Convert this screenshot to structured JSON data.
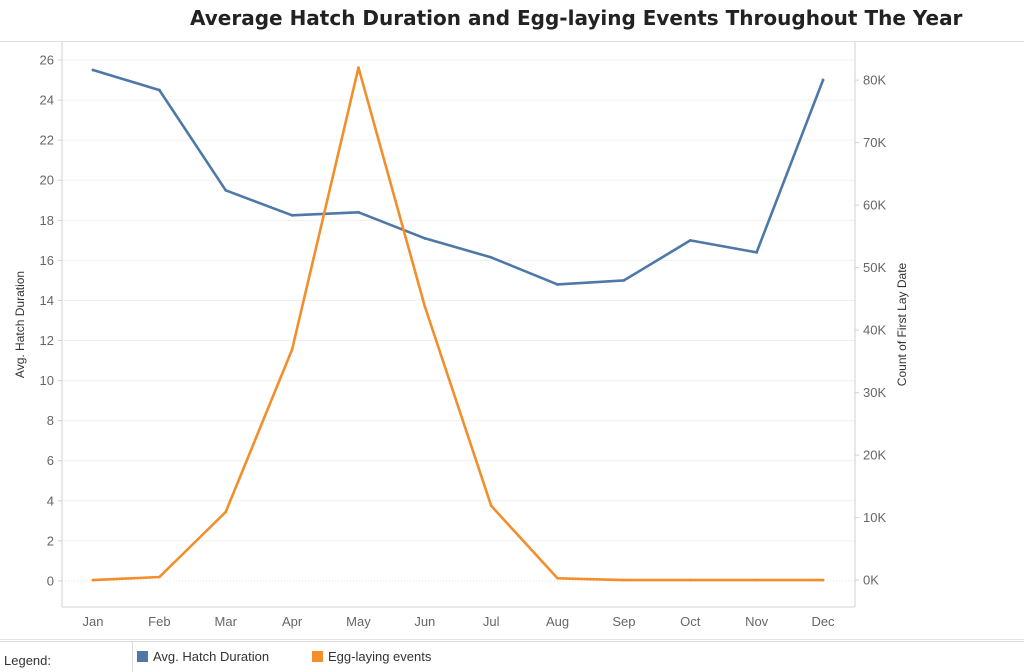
{
  "chart_data": {
    "type": "line",
    "title": "Average Hatch Duration and Egg-laying Events Throughout The Year",
    "categories": [
      "Jan",
      "Feb",
      "Mar",
      "Apr",
      "May",
      "Jun",
      "Jul",
      "Aug",
      "Sep",
      "Oct",
      "Nov",
      "Dec"
    ],
    "y_left": {
      "label": "Avg. Hatch Duration",
      "ticks": [
        "0",
        "2",
        "4",
        "6",
        "8",
        "10",
        "12",
        "14",
        "16",
        "18",
        "20",
        "22",
        "24",
        "26"
      ],
      "tick_values": [
        0,
        2,
        4,
        6,
        8,
        10,
        12,
        14,
        16,
        18,
        20,
        22,
        24,
        26
      ],
      "ylim": [
        -1.3,
        26.9
      ]
    },
    "y_right": {
      "label": "Count of First Lay Date",
      "ticks": [
        "0K",
        "10K",
        "20K",
        "30K",
        "40K",
        "50K",
        "60K",
        "70K",
        "80K"
      ],
      "tick_values": [
        0,
        10000,
        20000,
        30000,
        40000,
        50000,
        60000,
        70000,
        80000
      ],
      "ylim": [
        -4300,
        86100
      ]
    },
    "series": [
      {
        "name": "Avg. Hatch Duration",
        "axis": "left",
        "color": "#4e79a7",
        "values": [
          25.5,
          24.5,
          19.5,
          18.25,
          18.4,
          17.1,
          16.15,
          14.8,
          15.0,
          17.0,
          16.4,
          25.0
        ]
      },
      {
        "name": "Egg-laying events",
        "axis": "right",
        "color": "#f28e2b",
        "values": [
          0,
          500,
          10900,
          36900,
          82000,
          43800,
          11900,
          300,
          0,
          0,
          0,
          0
        ]
      }
    ],
    "grid": true,
    "legend": {
      "title": "Legend:",
      "placement": "bottom",
      "items": [
        {
          "label": "Avg. Hatch Duration",
          "color": "#4e79a7"
        },
        {
          "label": "Egg-laying events",
          "color": "#f28e2b"
        }
      ]
    }
  }
}
